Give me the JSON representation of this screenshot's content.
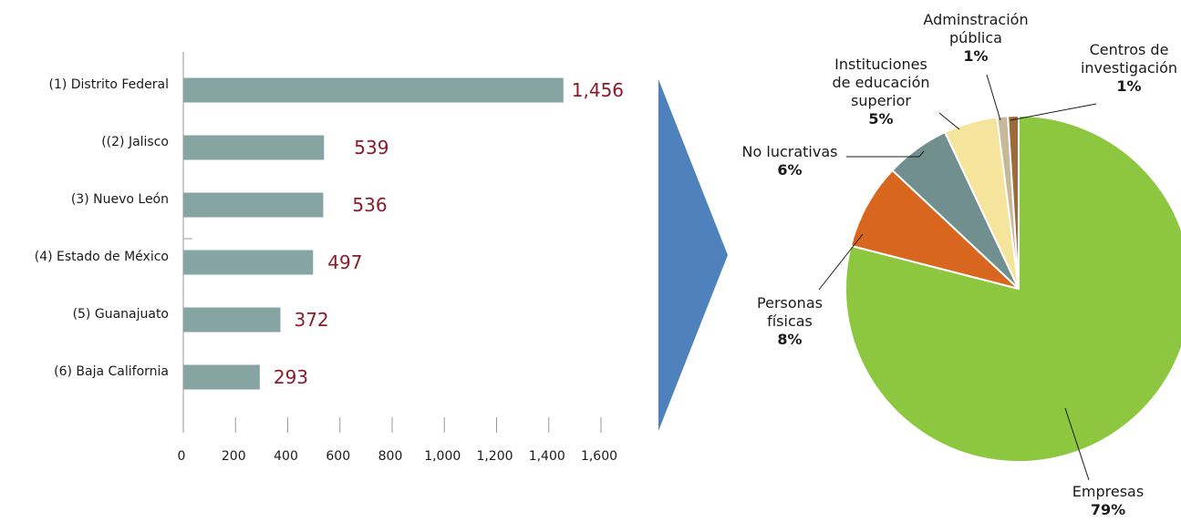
{
  "colors": {
    "bar": "#86a5a2",
    "value_text": "#8b1a2b",
    "arrow": "#4f81bd",
    "axis": "#9a9a9a"
  },
  "chart_data": [
    {
      "type": "bar",
      "orientation": "horizontal",
      "categories": [
        "(1) Distrito Federal",
        "((2) Jalisco",
        "(3) Nuevo León",
        "(4) Estado de México",
        "(5) Guanajuato",
        "(6) Baja California"
      ],
      "values": [
        1456,
        539,
        536,
        497,
        372,
        293
      ],
      "value_labels": [
        "1,456",
        "539",
        "536",
        "497",
        "372",
        "293"
      ],
      "xlim": [
        0,
        1600
      ],
      "xticks": [
        "0",
        "200",
        "400",
        "600",
        "800",
        "1,000",
        "1,200",
        "1,400",
        "1,600"
      ],
      "title": "",
      "xlabel": "",
      "ylabel": ""
    },
    {
      "type": "pie",
      "slices": [
        {
          "name_lines": [
            "Empresas"
          ],
          "pct": "79%",
          "value": 79,
          "color": "#8dc63f"
        },
        {
          "name_lines": [
            "Personas",
            "físicas"
          ],
          "pct": "8%",
          "value": 8,
          "color": "#d9661f"
        },
        {
          "name_lines": [
            "No lucrativas"
          ],
          "pct": "6%",
          "value": 6,
          "color": "#728f8f"
        },
        {
          "name_lines": [
            "Instituciones",
            "de educación",
            "superior"
          ],
          "pct": "5%",
          "value": 5,
          "color": "#f5e49b"
        },
        {
          "name_lines": [
            "Adminstración",
            "pública"
          ],
          "pct": "1%",
          "value": 1,
          "color": "#c8b89a"
        },
        {
          "name_lines": [
            "Centros de",
            "investigación"
          ],
          "pct": "1%",
          "value": 1,
          "color": "#9c6a3c"
        }
      ]
    }
  ]
}
